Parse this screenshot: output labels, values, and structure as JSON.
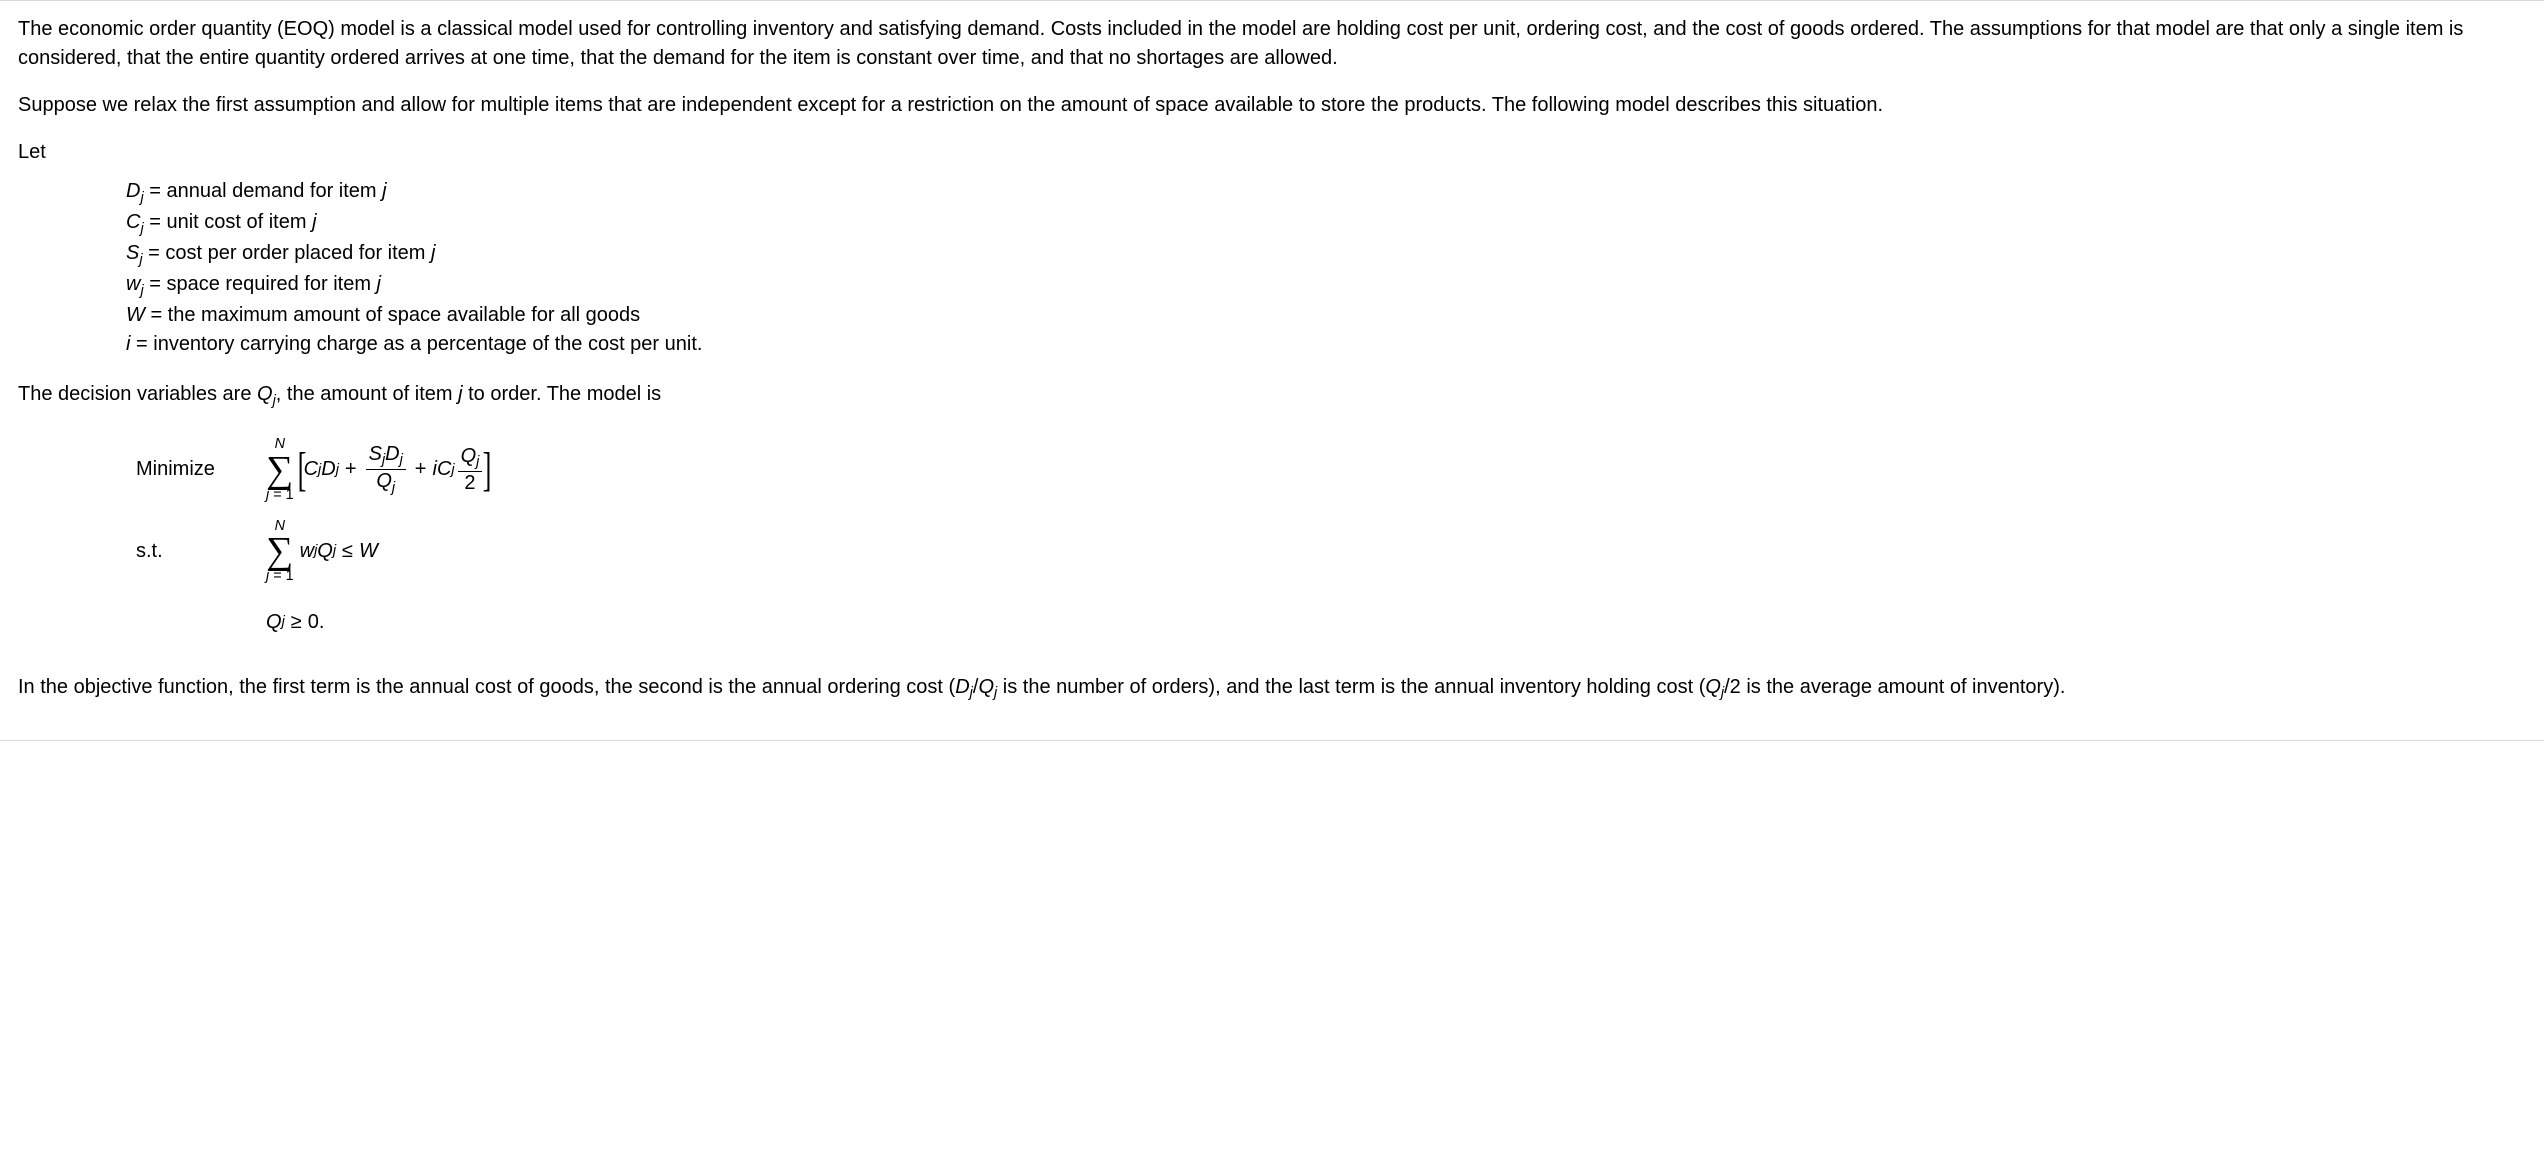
{
  "intro_p1": "The economic order quantity (EOQ) model is a classical model used for controlling inventory and satisfying demand. Costs included in the model are holding cost per unit, ordering cost, and the cost of goods ordered. The assumptions for that model are that only a single item is considered, that the entire quantity ordered arrives at one time, that the demand for the item is constant over time, and that no shortages are allowed.",
  "intro_p2": "Suppose we relax the first assumption and allow for multiple items that are independent except for a restriction on the amount of space available to store the products. The following model describes this situation.",
  "let_label": "Let",
  "defs": {
    "Dj": " = annual demand for item ",
    "Cj": " = unit cost of item ",
    "Sj": " = cost per order placed for item ",
    "wj": " = space required for item ",
    "W": " = the maximum amount of space available for all goods",
    "i": " = inventory carrying charge as a percentage of the cost per unit."
  },
  "defs_j": "j",
  "decision_pre": "The decision variables are ",
  "decision_mid": ", the amount of item ",
  "decision_post": " to order. The model is",
  "minimize_label": "Minimize",
  "st_label": "s.t.",
  "sum_top": "N",
  "sum_bot_j": "j",
  "sum_bot_eq": " = 1",
  "obj_term1_C": "C",
  "obj_term1_D": "D",
  "plus": "+",
  "frac1_num_S": "S",
  "frac1_num_D": "D",
  "frac1_den_Q": "Q",
  "obj_i": "i",
  "obj_C2": "C",
  "frac2_num_Q": "Q",
  "frac2_den_2": "2",
  "con_w": "w",
  "con_Q": "Q",
  "leq": "≤",
  "con_W": "W",
  "nn_Q": "Q",
  "geq": "≥",
  "nn_zero": "0.",
  "closing_pre": "In the objective function, the first term is the annual cost of goods, the second is the annual ordering cost (",
  "closing_D": "D",
  "closing_slash": "/",
  "closing_Q": "Q",
  "closing_mid": " is the number of orders), and the last term is the annual inventory holding cost (",
  "closing_Q2": "Q",
  "closing_post": "/2 is the average amount of inventory)."
}
